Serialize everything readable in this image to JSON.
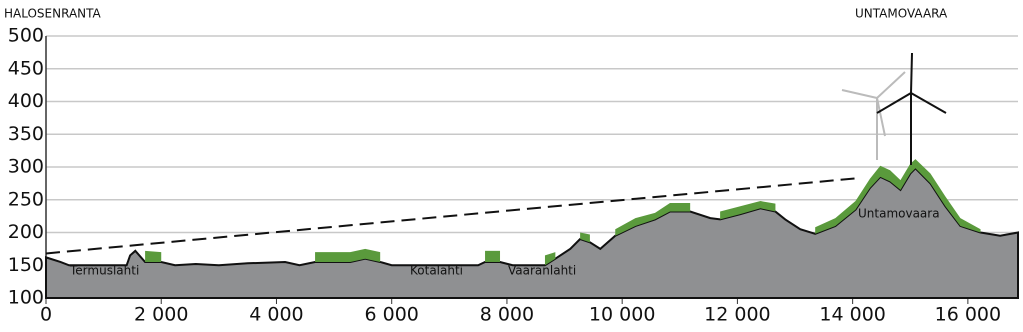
{
  "chart_data": {
    "type": "area",
    "left_label": "HALOSENRANTA",
    "right_label": "UNTAMOVAARA",
    "annotations": [
      "Termuslahti",
      "Kotalahti",
      "Vaaranlahti",
      "Untamovaara"
    ],
    "x": [
      0,
      250,
      400,
      1400,
      1460,
      1550,
      1720,
      2000,
      2240,
      2600,
      3000,
      3500,
      4150,
      4400,
      4670,
      5280,
      5540,
      5800,
      6000,
      7500,
      7620,
      7880,
      8100,
      8660,
      8840,
      9100,
      9270,
      9440,
      9620,
      9880,
      10230,
      10570,
      10830,
      11180,
      11530,
      11700,
      12050,
      12400,
      12660,
      12830,
      13090,
      13350,
      13700,
      14050,
      14300,
      14480,
      14650,
      14830,
      15000,
      15090,
      15350,
      15610,
      15870,
      16220,
      16560,
      16870
    ],
    "series": [
      {
        "color": "#8f9092",
        "values": [
          162,
          155,
          150,
          150,
          165,
          172,
          155,
          155,
          150,
          152,
          150,
          153,
          155,
          150,
          155,
          155,
          160,
          155,
          150,
          150,
          155,
          155,
          150,
          150,
          160,
          175,
          190,
          185,
          175,
          195,
          210,
          220,
          232,
          232,
          222,
          220,
          228,
          237,
          232,
          220,
          205,
          198,
          210,
          235,
          268,
          285,
          278,
          265,
          290,
          298,
          275,
          240,
          210,
          200,
          195,
          200
        ]
      },
      {
        "color": "#5a9a3c",
        "values": [
          null,
          null,
          null,
          null,
          null,
          null,
          172,
          170,
          null,
          null,
          null,
          null,
          null,
          null,
          170,
          170,
          175,
          170,
          null,
          null,
          172,
          172,
          null,
          165,
          170,
          null,
          200,
          197,
          null,
          205,
          222,
          230,
          245,
          245,
          null,
          232,
          240,
          248,
          244,
          null,
          null,
          208,
          222,
          248,
          282,
          302,
          295,
          280,
          305,
          312,
          290,
          255,
          222,
          205,
          null,
          null
        ]
      }
    ],
    "sight_line": {
      "x": [
        0,
        14100
      ],
      "values": [
        168,
        283
      ]
    },
    "xlim": [
      0,
      16870
    ],
    "ylim": [
      100,
      500
    ],
    "xticks": [
      0,
      {
        "value": 2000,
        "label": "2 000"
      },
      {
        "value": 4000,
        "label": "4 000"
      },
      {
        "value": 6000,
        "label": "6 000"
      },
      {
        "value": 8000,
        "label": "8 000"
      },
      {
        "value": 10000,
        "label": "10 000"
      },
      {
        "value": 12000,
        "label": "12 000"
      },
      {
        "value": 14000,
        "label": "14 000"
      },
      {
        "value": 16000,
        "label": "16 000"
      }
    ],
    "yticks": [
      100,
      150,
      200,
      250,
      300,
      350,
      400,
      450,
      500
    ],
    "grid": true
  }
}
